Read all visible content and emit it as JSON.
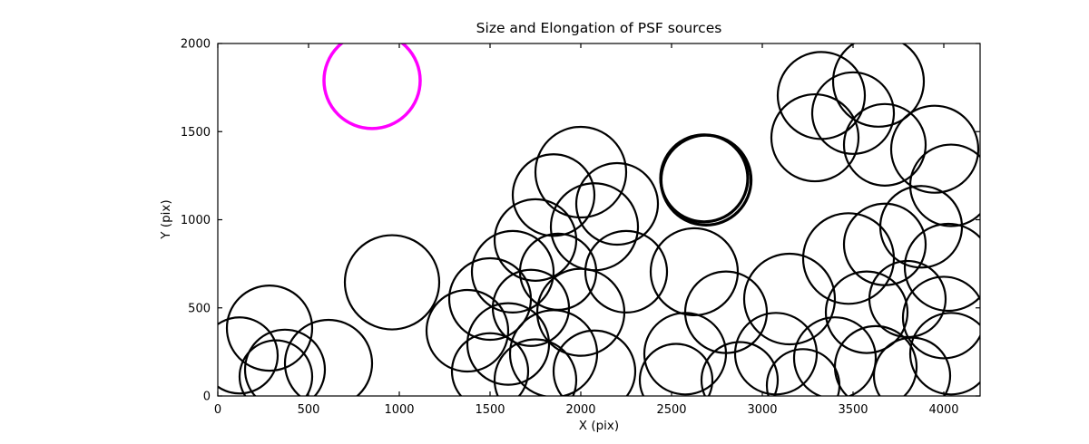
{
  "chart_data": {
    "type": "scatter",
    "title": "Size and Elongation of PSF sources",
    "xlabel": "X (pix)",
    "ylabel": "Y (pix)",
    "xlim": [
      0,
      4200
    ],
    "ylim": [
      0,
      2000
    ],
    "xticks": [
      0,
      500,
      1000,
      1500,
      2000,
      2500,
      3000,
      3500,
      4000
    ],
    "yticks": [
      0,
      500,
      1000,
      1500,
      2000
    ],
    "grid": false,
    "legend": null,
    "marker": "circle-outline",
    "colors": {
      "default": "#000000",
      "highlight": "#FF00FF",
      "frame": "#000000"
    },
    "circles": [
      {
        "x": 850,
        "y": 1790,
        "r": 265,
        "color": "#FF00FF",
        "lw": 3.5
      },
      {
        "x": 285,
        "y": 385,
        "r": 235
      },
      {
        "x": 120,
        "y": 230,
        "r": 210
      },
      {
        "x": 370,
        "y": 150,
        "r": 220
      },
      {
        "x": 610,
        "y": 185,
        "r": 240
      },
      {
        "x": 320,
        "y": 110,
        "r": 200
      },
      {
        "x": 960,
        "y": 645,
        "r": 260
      },
      {
        "x": 2000,
        "y": 1270,
        "r": 250
      },
      {
        "x": 1850,
        "y": 1140,
        "r": 225
      },
      {
        "x": 2075,
        "y": 960,
        "r": 240
      },
      {
        "x": 1750,
        "y": 885,
        "r": 225
      },
      {
        "x": 1625,
        "y": 705,
        "r": 225
      },
      {
        "x": 1875,
        "y": 705,
        "r": 210
      },
      {
        "x": 1500,
        "y": 550,
        "r": 225
      },
      {
        "x": 1725,
        "y": 500,
        "r": 210
      },
      {
        "x": 2000,
        "y": 475,
        "r": 240
      },
      {
        "x": 1375,
        "y": 370,
        "r": 225
      },
      {
        "x": 1600,
        "y": 295,
        "r": 225
      },
      {
        "x": 1850,
        "y": 240,
        "r": 240
      },
      {
        "x": 1500,
        "y": 140,
        "r": 210
      },
      {
        "x": 1750,
        "y": 90,
        "r": 225
      },
      {
        "x": 2075,
        "y": 140,
        "r": 225
      },
      {
        "x": 2250,
        "y": 705,
        "r": 225
      },
      {
        "x": 2200,
        "y": 1090,
        "r": 225
      },
      {
        "x": 2680,
        "y": 1235,
        "r": 240,
        "lw": 3.2
      },
      {
        "x": 2690,
        "y": 1225,
        "r": 248,
        "lw": 3.2
      },
      {
        "x": 2625,
        "y": 705,
        "r": 240
      },
      {
        "x": 2575,
        "y": 240,
        "r": 225
      },
      {
        "x": 2800,
        "y": 475,
        "r": 225
      },
      {
        "x": 2525,
        "y": 90,
        "r": 200
      },
      {
        "x": 2875,
        "y": 90,
        "r": 210
      },
      {
        "x": 3150,
        "y": 550,
        "r": 250
      },
      {
        "x": 3075,
        "y": 240,
        "r": 225
      },
      {
        "x": 3325,
        "y": 1705,
        "r": 240
      },
      {
        "x": 3290,
        "y": 1465,
        "r": 240
      },
      {
        "x": 3500,
        "y": 1605,
        "r": 225
      },
      {
        "x": 3640,
        "y": 1785,
        "r": 250
      },
      {
        "x": 3675,
        "y": 1425,
        "r": 225
      },
      {
        "x": 3950,
        "y": 1400,
        "r": 240
      },
      {
        "x": 4040,
        "y": 1195,
        "r": 225
      },
      {
        "x": 3475,
        "y": 780,
        "r": 250
      },
      {
        "x": 3675,
        "y": 860,
        "r": 225
      },
      {
        "x": 3875,
        "y": 960,
        "r": 225
      },
      {
        "x": 4025,
        "y": 730,
        "r": 240
      },
      {
        "x": 3575,
        "y": 475,
        "r": 225
      },
      {
        "x": 3800,
        "y": 550,
        "r": 210
      },
      {
        "x": 4000,
        "y": 445,
        "r": 225
      },
      {
        "x": 3400,
        "y": 215,
        "r": 225
      },
      {
        "x": 3625,
        "y": 165,
        "r": 225
      },
      {
        "x": 3825,
        "y": 115,
        "r": 210
      },
      {
        "x": 4040,
        "y": 240,
        "r": 225
      },
      {
        "x": 3225,
        "y": 60,
        "r": 200
      }
    ]
  }
}
